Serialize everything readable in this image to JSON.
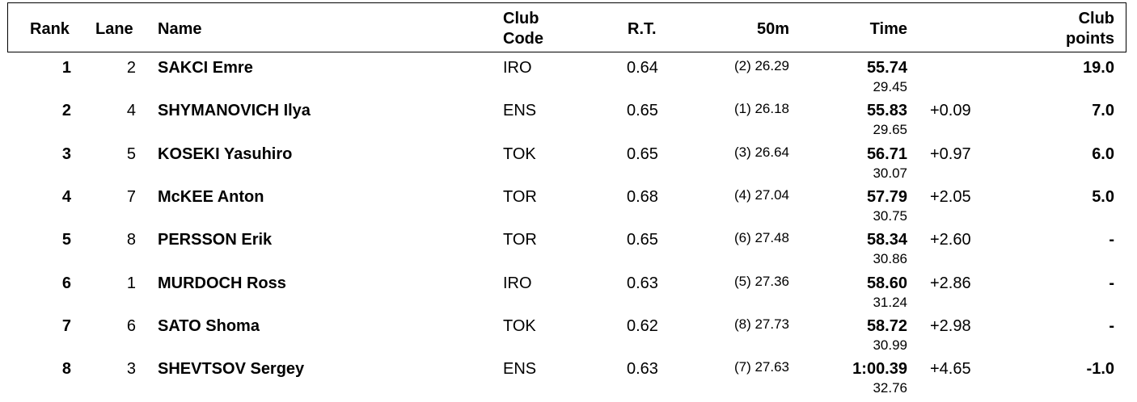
{
  "headers": {
    "rank": "Rank",
    "lane": "Lane",
    "name": "Name",
    "club_code_1": "Club",
    "club_code_2": "Code",
    "rt": "R.T.",
    "split": "50m",
    "time": "Time",
    "club_points_1": "Club",
    "club_points_2": "points"
  },
  "rows": [
    {
      "rank": "1",
      "lane": "2",
      "name": "SAKCI Emre",
      "club": "IRO",
      "rt": "0.64",
      "split": "(2) 26.29",
      "time": "55.74",
      "split2": "29.45",
      "behind": "",
      "points": "19.0"
    },
    {
      "rank": "2",
      "lane": "4",
      "name": "SHYMANOVICH Ilya",
      "club": "ENS",
      "rt": "0.65",
      "split": "(1) 26.18",
      "time": "55.83",
      "split2": "29.65",
      "behind": "+0.09",
      "points": "7.0"
    },
    {
      "rank": "3",
      "lane": "5",
      "name": "KOSEKI Yasuhiro",
      "club": "TOK",
      "rt": "0.65",
      "split": "(3) 26.64",
      "time": "56.71",
      "split2": "30.07",
      "behind": "+0.97",
      "points": "6.0"
    },
    {
      "rank": "4",
      "lane": "7",
      "name": "McKEE Anton",
      "club": "TOR",
      "rt": "0.68",
      "split": "(4) 27.04",
      "time": "57.79",
      "split2": "30.75",
      "behind": "+2.05",
      "points": "5.0"
    },
    {
      "rank": "5",
      "lane": "8",
      "name": "PERSSON Erik",
      "club": "TOR",
      "rt": "0.65",
      "split": "(6) 27.48",
      "time": "58.34",
      "split2": "30.86",
      "behind": "+2.60",
      "points": "-"
    },
    {
      "rank": "6",
      "lane": "1",
      "name": "MURDOCH Ross",
      "club": "IRO",
      "rt": "0.63",
      "split": "(5) 27.36",
      "time": "58.60",
      "split2": "31.24",
      "behind": "+2.86",
      "points": "-"
    },
    {
      "rank": "7",
      "lane": "6",
      "name": "SATO Shoma",
      "club": "TOK",
      "rt": "0.62",
      "split": "(8) 27.73",
      "time": "58.72",
      "split2": "30.99",
      "behind": "+2.98",
      "points": "-"
    },
    {
      "rank": "8",
      "lane": "3",
      "name": "SHEVTSOV Sergey",
      "club": "ENS",
      "rt": "0.63",
      "split": "(7) 27.63",
      "time": "1:00.39",
      "split2": "32.76",
      "behind": "+4.65",
      "points": "-1.0"
    }
  ]
}
